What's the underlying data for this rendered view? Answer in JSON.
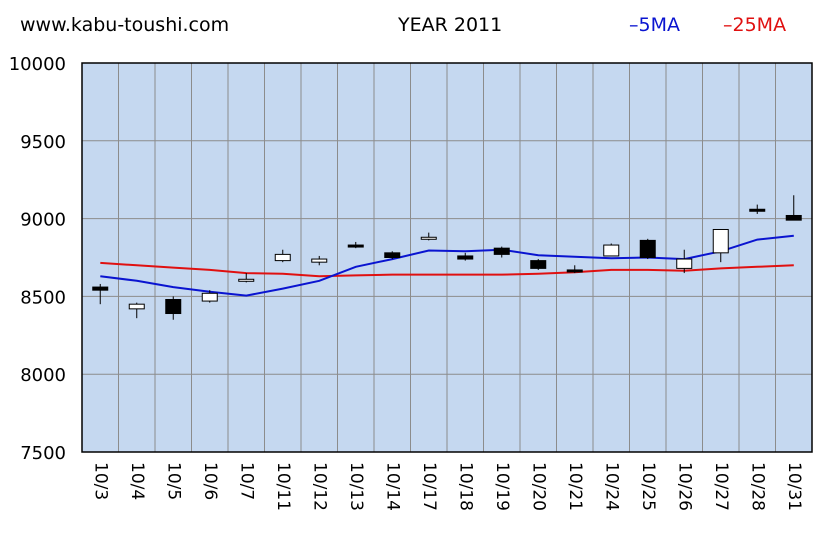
{
  "header": {
    "site": "www.kabu-toushi.com",
    "title": "YEAR 2011"
  },
  "colors": {
    "plot_bg": "#c5d8f0",
    "grid": "#8c8c8c",
    "ma5": "#0a14d0",
    "ma25": "#e01010",
    "bull_fill": "#ffffff",
    "bear_fill": "#000000"
  },
  "chart_data": {
    "type": "candlestick",
    "ylim": [
      7500,
      10000
    ],
    "yticks": [
      7500,
      8000,
      8500,
      9000,
      9500,
      10000
    ],
    "grid": true,
    "legend_position": "top-right",
    "categories": [
      "10/3",
      "10/4",
      "10/5",
      "10/6",
      "10/7",
      "10/11",
      "10/12",
      "10/13",
      "10/14",
      "10/17",
      "10/18",
      "10/19",
      "10/20",
      "10/21",
      "10/24",
      "10/25",
      "10/26",
      "10/27",
      "10/28",
      "10/31"
    ],
    "candles": [
      {
        "date": "10/3",
        "open": 8560,
        "high": 8580,
        "low": 8450,
        "close": 8540
      },
      {
        "date": "10/4",
        "open": 8420,
        "high": 8460,
        "low": 8360,
        "close": 8450
      },
      {
        "date": "10/5",
        "open": 8480,
        "high": 8500,
        "low": 8350,
        "close": 8390
      },
      {
        "date": "10/6",
        "open": 8470,
        "high": 8540,
        "low": 8460,
        "close": 8520
      },
      {
        "date": "10/7",
        "open": 8600,
        "high": 8650,
        "low": 8590,
        "close": 8610
      },
      {
        "date": "10/11",
        "open": 8730,
        "high": 8800,
        "low": 8720,
        "close": 8770
      },
      {
        "date": "10/12",
        "open": 8720,
        "high": 8760,
        "low": 8700,
        "close": 8740
      },
      {
        "date": "10/13",
        "open": 8830,
        "high": 8850,
        "low": 8810,
        "close": 8820
      },
      {
        "date": "10/14",
        "open": 8780,
        "high": 8790,
        "low": 8740,
        "close": 8750
      },
      {
        "date": "10/17",
        "open": 8870,
        "high": 8910,
        "low": 8860,
        "close": 8880
      },
      {
        "date": "10/18",
        "open": 8760,
        "high": 8780,
        "low": 8730,
        "close": 8740
      },
      {
        "date": "10/19",
        "open": 8810,
        "high": 8820,
        "low": 8750,
        "close": 8770
      },
      {
        "date": "10/20",
        "open": 8730,
        "high": 8740,
        "low": 8670,
        "close": 8680
      },
      {
        "date": "10/21",
        "open": 8670,
        "high": 8700,
        "low": 8650,
        "close": 8660
      },
      {
        "date": "10/24",
        "open": 8760,
        "high": 8840,
        "low": 8760,
        "close": 8830
      },
      {
        "date": "10/25",
        "open": 8860,
        "high": 8870,
        "low": 8740,
        "close": 8750
      },
      {
        "date": "10/26",
        "open": 8680,
        "high": 8800,
        "low": 8650,
        "close": 8740
      },
      {
        "date": "10/27",
        "open": 8780,
        "high": 8930,
        "low": 8720,
        "close": 8930
      },
      {
        "date": "10/28",
        "open": 9060,
        "high": 9090,
        "low": 9030,
        "close": 9050
      },
      {
        "date": "10/31",
        "open": 9020,
        "high": 9150,
        "low": 8990,
        "close": 8990
      }
    ],
    "series": [
      {
        "name": "5MA",
        "values": [
          8630,
          8600,
          8560,
          8530,
          8505,
          8550,
          8600,
          8690,
          8740,
          8795,
          8790,
          8800,
          8765,
          8755,
          8745,
          8750,
          8740,
          8790,
          8865,
          8890
        ]
      },
      {
        "name": "25MA",
        "values": [
          8715,
          8700,
          8685,
          8670,
          8650,
          8645,
          8630,
          8635,
          8640,
          8640,
          8640,
          8640,
          8645,
          8655,
          8670,
          8670,
          8665,
          8680,
          8690,
          8700
        ]
      }
    ]
  }
}
